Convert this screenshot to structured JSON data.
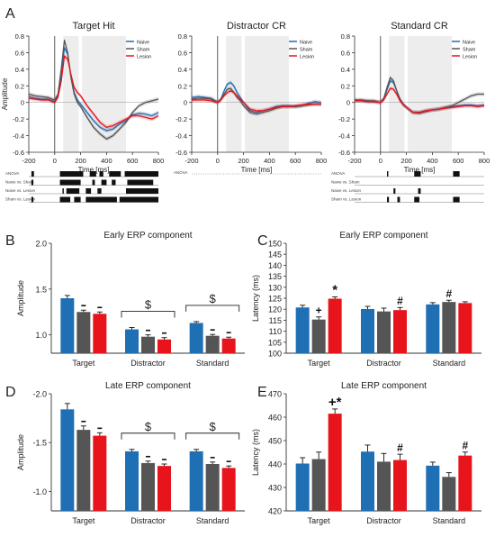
{
  "colors": {
    "naive": "#1f6fb4",
    "sham": "#555555",
    "lesion": "#e8141c",
    "shade": "#ededed"
  },
  "panel_letters": {
    "a": "A",
    "b": "B",
    "c": "C",
    "d": "D",
    "e": "E"
  },
  "legend_labels": {
    "naive": "Naive",
    "sham": "Sham",
    "lesion": "Lesion"
  },
  "anova_labels": [
    "ANOVA",
    "Naive vs. Sham",
    "Naive vs. Lesion",
    "Sham vs. Lesion"
  ],
  "chart_data": [
    {
      "id": "target_hit",
      "type": "line",
      "title": "Target Hit",
      "xlabel": "Time [ms]",
      "ylabel": "Amplitude",
      "xlim": [
        -200,
        800
      ],
      "ylim": [
        -0.6,
        0.8
      ],
      "xticks": [
        -200,
        0,
        200,
        400,
        600,
        800
      ],
      "yticks": [
        -0.6,
        -0.4,
        -0.2,
        0,
        0.2,
        0.4,
        0.6,
        0.8
      ],
      "shaded": [
        [
          65,
          185
        ],
        [
          210,
          550
        ]
      ],
      "legend": "top-right",
      "x": [
        -200,
        -150,
        -100,
        -50,
        0,
        25,
        50,
        75,
        100,
        125,
        150,
        175,
        200,
        250,
        300,
        350,
        400,
        450,
        500,
        550,
        600,
        650,
        700,
        750,
        800
      ],
      "series": [
        {
          "name": "Naive",
          "values": [
            0.07,
            0.05,
            0.04,
            0.04,
            0.01,
            0.08,
            0.32,
            0.66,
            0.58,
            0.32,
            0.12,
            0.03,
            -0.02,
            -0.12,
            -0.22,
            -0.3,
            -0.34,
            -0.32,
            -0.26,
            -0.22,
            -0.15,
            -0.13,
            -0.14,
            -0.16,
            -0.12
          ]
        },
        {
          "name": "Sham",
          "values": [
            0.1,
            0.08,
            0.07,
            0.06,
            0.03,
            0.1,
            0.4,
            0.75,
            0.6,
            0.3,
            0.1,
            0.0,
            -0.05,
            -0.18,
            -0.3,
            -0.38,
            -0.44,
            -0.4,
            -0.32,
            -0.24,
            -0.12,
            -0.04,
            0.0,
            0.02,
            0.04
          ]
        },
        {
          "name": "Lesion",
          "values": [
            0.05,
            0.04,
            0.03,
            0.03,
            0.0,
            0.06,
            0.25,
            0.56,
            0.52,
            0.34,
            0.18,
            0.12,
            0.08,
            -0.04,
            -0.14,
            -0.24,
            -0.3,
            -0.28,
            -0.24,
            -0.2,
            -0.16,
            -0.16,
            -0.18,
            -0.2,
            -0.16
          ]
        }
      ],
      "sig_rows": [
        [
          [
            -180,
            -160
          ],
          [
            40,
            220
          ],
          [
            270,
            320
          ],
          [
            345,
            375
          ],
          [
            420,
            510
          ],
          [
            540,
            800
          ]
        ],
        [
          [
            -180,
            -165
          ],
          [
            40,
            200
          ],
          [
            290,
            310
          ],
          [
            360,
            400
          ],
          [
            440,
            470
          ],
          [
            560,
            760
          ]
        ],
        [
          [
            60,
            70
          ],
          [
            90,
            190
          ],
          [
            240,
            280
          ],
          [
            330,
            360
          ],
          [
            550,
            800
          ]
        ],
        [
          [
            -180,
            -165
          ],
          [
            40,
            120
          ],
          [
            150,
            200
          ],
          [
            240,
            480
          ],
          [
            500,
            800
          ]
        ]
      ]
    },
    {
      "id": "distractor_cr",
      "type": "line",
      "title": "Distractor CR",
      "xlabel": "Time [ms]",
      "ylabel": "",
      "xlim": [
        -200,
        800
      ],
      "ylim": [
        -0.6,
        0.8
      ],
      "xticks": [
        -200,
        0,
        200,
        400,
        600,
        800
      ],
      "yticks": [
        -0.6,
        -0.4,
        -0.2,
        0,
        0.2,
        0.4,
        0.6,
        0.8
      ],
      "shaded": [
        [
          65,
          185
        ],
        [
          210,
          550
        ]
      ],
      "legend": "top-right",
      "x": [
        -200,
        -150,
        -100,
        -50,
        0,
        25,
        50,
        75,
        100,
        125,
        150,
        175,
        200,
        250,
        300,
        350,
        400,
        450,
        500,
        550,
        600,
        650,
        700,
        750,
        800
      ],
      "series": [
        {
          "name": "Naive",
          "values": [
            0.06,
            0.07,
            0.06,
            0.05,
            0.0,
            0.04,
            0.14,
            0.22,
            0.24,
            0.2,
            0.12,
            0.06,
            0.0,
            -0.1,
            -0.12,
            -0.1,
            -0.08,
            -0.05,
            -0.04,
            -0.04,
            -0.05,
            -0.04,
            -0.01,
            0.01,
            0.0
          ]
        },
        {
          "name": "Sham",
          "values": [
            0.04,
            0.05,
            0.05,
            0.04,
            0.0,
            0.03,
            0.1,
            0.16,
            0.17,
            0.12,
            0.06,
            0.02,
            -0.04,
            -0.12,
            -0.14,
            -0.12,
            -0.1,
            -0.07,
            -0.05,
            -0.05,
            -0.05,
            -0.04,
            -0.03,
            -0.02,
            -0.02
          ]
        },
        {
          "name": "Lesion",
          "values": [
            0.03,
            0.03,
            0.03,
            0.02,
            0.0,
            0.03,
            0.08,
            0.12,
            0.14,
            0.12,
            0.08,
            0.04,
            0.0,
            -0.08,
            -0.1,
            -0.1,
            -0.08,
            -0.06,
            -0.05,
            -0.05,
            -0.04,
            -0.03,
            -0.02,
            -0.02,
            -0.02
          ]
        }
      ],
      "sig_rows": [
        [],
        [],
        [],
        []
      ]
    },
    {
      "id": "standard_cr",
      "type": "line",
      "title": "Standard CR",
      "xlabel": "Time [ms]",
      "ylabel": "",
      "xlim": [
        -200,
        800
      ],
      "ylim": [
        -0.6,
        0.8
      ],
      "xticks": [
        -200,
        0,
        200,
        400,
        600,
        800
      ],
      "yticks": [
        -0.6,
        -0.4,
        -0.2,
        0,
        0.2,
        0.4,
        0.6,
        0.8
      ],
      "shaded": [
        [
          65,
          185
        ],
        [
          210,
          550
        ]
      ],
      "legend": "top-right",
      "x": [
        -200,
        -150,
        -100,
        -50,
        0,
        25,
        50,
        75,
        100,
        125,
        150,
        175,
        200,
        250,
        300,
        350,
        400,
        450,
        500,
        550,
        600,
        650,
        700,
        750,
        800
      ],
      "series": [
        {
          "name": "Naive",
          "values": [
            0.02,
            0.02,
            0.02,
            0.01,
            0.0,
            0.04,
            0.15,
            0.26,
            0.24,
            0.14,
            0.04,
            -0.02,
            -0.06,
            -0.12,
            -0.12,
            -0.1,
            -0.09,
            -0.08,
            -0.06,
            -0.05,
            -0.04,
            -0.03,
            -0.03,
            -0.04,
            -0.03
          ]
        },
        {
          "name": "Sham",
          "values": [
            0.03,
            0.03,
            0.02,
            0.02,
            0.0,
            0.05,
            0.18,
            0.3,
            0.26,
            0.14,
            0.04,
            -0.02,
            -0.06,
            -0.12,
            -0.13,
            -0.11,
            -0.09,
            -0.08,
            -0.06,
            -0.04,
            0.0,
            0.04,
            0.08,
            0.1,
            0.1
          ]
        },
        {
          "name": "Lesion",
          "values": [
            0.02,
            0.02,
            0.01,
            0.01,
            0.0,
            0.03,
            0.1,
            0.17,
            0.16,
            0.1,
            0.02,
            -0.03,
            -0.06,
            -0.12,
            -0.12,
            -0.1,
            -0.09,
            -0.08,
            -0.07,
            -0.06,
            -0.05,
            -0.04,
            -0.04,
            -0.05,
            -0.04
          ]
        }
      ],
      "sig_rows": [
        [
          [
            50,
            60
          ],
          [
            260,
            310
          ],
          [
            560,
            610
          ]
        ],
        [],
        [
          [
            100,
            115
          ],
          [
            290,
            310
          ]
        ],
        [
          [
            50,
            65
          ],
          [
            130,
            150
          ],
          [
            260,
            300
          ],
          [
            560,
            610
          ]
        ]
      ]
    },
    {
      "id": "early_amp",
      "type": "bar",
      "title": "Early ERP component",
      "ylabel": "Amplitude",
      "ylim": [
        0.8,
        2.0
      ],
      "yticks": [
        1.0,
        1.5,
        2.0
      ],
      "ytick_labels": [
        "1.0",
        "1.5",
        "2.0"
      ],
      "yinvert": false,
      "categories": [
        "Target",
        "Distractor",
        "Standard"
      ],
      "series": [
        {
          "name": "Naive",
          "values": [
            1.4,
            1.06,
            1.13
          ],
          "errors": [
            0.03,
            0.02,
            0.015
          ]
        },
        {
          "name": "Sham",
          "values": [
            1.25,
            0.98,
            0.99
          ],
          "errors": [
            0.02,
            0.02,
            0.015
          ]
        },
        {
          "name": "Lesion",
          "values": [
            1.23,
            0.95,
            0.96
          ],
          "errors": [
            0.02,
            0.02,
            0.015
          ]
        }
      ],
      "bar_marks": [
        [
          "",
          "--",
          "--"
        ],
        [
          "",
          "--",
          "--"
        ],
        [
          "",
          "--",
          "--"
        ]
      ],
      "brackets": [
        {
          "category": 1,
          "label": "$"
        },
        {
          "category": 2,
          "label": "$"
        }
      ]
    },
    {
      "id": "early_lat",
      "type": "bar",
      "title": "Early ERP component",
      "ylabel": "Latency (ms)",
      "ylim": [
        100,
        150
      ],
      "yticks": [
        100,
        105,
        110,
        115,
        120,
        125,
        130,
        135,
        140,
        145,
        150
      ],
      "ytick_labels": [
        "100",
        "105",
        "110",
        "115",
        "120",
        "125",
        "130",
        "135",
        "140",
        "145",
        "150"
      ],
      "yinvert": false,
      "categories": [
        "Target",
        "Distractor",
        "Standard"
      ],
      "series": [
        {
          "name": "Naive",
          "values": [
            120.8,
            120.1,
            122.2
          ],
          "errors": [
            1.0,
            1.2,
            0.8
          ]
        },
        {
          "name": "Sham",
          "values": [
            115.3,
            119.0,
            123.3
          ],
          "errors": [
            1.2,
            1.5,
            0.8
          ]
        },
        {
          "name": "Lesion",
          "values": [
            124.8,
            119.6,
            122.8
          ],
          "errors": [
            0.8,
            1.2,
            0.6
          ]
        }
      ],
      "bar_marks": [
        [
          "",
          "+",
          "*"
        ],
        [
          "",
          "",
          "#"
        ],
        [
          "",
          "#",
          ""
        ]
      ],
      "brackets": []
    },
    {
      "id": "late_amp",
      "type": "bar",
      "title": "Late ERP component",
      "ylabel": "Amplitude",
      "ylim": [
        -0.8,
        -2.0
      ],
      "yticks": [
        -1.0,
        -1.5,
        -2.0
      ],
      "ytick_labels": [
        "-1.0",
        "-1.5",
        "-2.0"
      ],
      "yinvert": true,
      "categories": [
        "Target",
        "Distractor",
        "Standard"
      ],
      "series": [
        {
          "name": "Naive",
          "values": [
            -1.84,
            -1.41,
            -1.41
          ],
          "errors": [
            0.06,
            0.02,
            0.02
          ]
        },
        {
          "name": "Sham",
          "values": [
            -1.63,
            -1.29,
            -1.28
          ],
          "errors": [
            0.04,
            0.02,
            0.02
          ]
        },
        {
          "name": "Lesion",
          "values": [
            -1.57,
            -1.26,
            -1.24
          ],
          "errors": [
            0.03,
            0.02,
            0.02
          ]
        }
      ],
      "bar_marks": [
        [
          "",
          "--",
          "--"
        ],
        [
          "",
          "--",
          "--"
        ],
        [
          "",
          "--",
          "--"
        ]
      ],
      "brackets": [
        {
          "category": 1,
          "label": "$"
        },
        {
          "category": 2,
          "label": "$"
        }
      ]
    },
    {
      "id": "late_lat",
      "type": "bar",
      "title": "Late ERP component",
      "ylabel": "Latency (ms)",
      "ylim": [
        420,
        470
      ],
      "yticks": [
        420,
        430,
        440,
        450,
        460,
        470
      ],
      "ytick_labels": [
        "420",
        "430",
        "440",
        "450",
        "460",
        "470"
      ],
      "yinvert": false,
      "categories": [
        "Target",
        "Distractor",
        "Standard"
      ],
      "series": [
        {
          "name": "Naive",
          "values": [
            440.2,
            445.3,
            439.3
          ],
          "errors": [
            2.5,
            2.8,
            1.5
          ]
        },
        {
          "name": "Sham",
          "values": [
            442.1,
            441.0,
            434.5
          ],
          "errors": [
            3.0,
            3.5,
            1.8
          ]
        },
        {
          "name": "Lesion",
          "values": [
            461.5,
            441.7,
            443.6
          ],
          "errors": [
            2.0,
            2.5,
            1.5
          ]
        }
      ],
      "bar_marks": [
        [
          "",
          "",
          "+*"
        ],
        [
          "",
          "",
          "#"
        ],
        [
          "",
          "",
          "#"
        ]
      ],
      "brackets": []
    }
  ]
}
